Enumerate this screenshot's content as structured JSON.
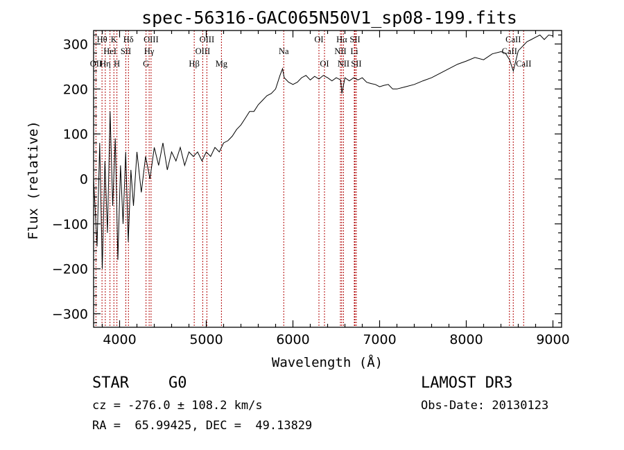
{
  "chart_data": {
    "type": "line",
    "title": "spec-56316-GAC065N50V1_sp08-199.fits",
    "xlabel": "Wavelength (Å)",
    "ylabel": "Flux (relative)",
    "xlim": [
      3700,
      9100
    ],
    "ylim": [
      -330,
      330
    ],
    "xticks": [
      4000,
      5000,
      6000,
      7000,
      8000,
      9000
    ],
    "xtick_labels": [
      "4000",
      "5000",
      "6000",
      "7000",
      "8000",
      "9000"
    ],
    "yticks": [
      -300,
      -200,
      -100,
      0,
      100,
      200,
      300
    ],
    "ytick_labels": [
      "-300",
      "-200",
      "-100",
      "0",
      "100",
      "200",
      "300"
    ],
    "series": [
      {
        "name": "spectrum",
        "x": [
          3700,
          3740,
          3770,
          3800,
          3830,
          3860,
          3890,
          3920,
          3950,
          3980,
          4010,
          4040,
          4070,
          4100,
          4130,
          4160,
          4200,
          4250,
          4300,
          4350,
          4400,
          4450,
          4500,
          4550,
          4600,
          4650,
          4700,
          4750,
          4800,
          4850,
          4900,
          4950,
          5000,
          5050,
          5100,
          5150,
          5200,
          5250,
          5300,
          5350,
          5400,
          5450,
          5500,
          5550,
          5600,
          5650,
          5700,
          5750,
          5800,
          5850,
          5880,
          5900,
          5950,
          6000,
          6050,
          6100,
          6150,
          6200,
          6250,
          6300,
          6350,
          6400,
          6450,
          6500,
          6550,
          6565,
          6600,
          6650,
          6700,
          6750,
          6800,
          6850,
          6900,
          6950,
          7000,
          7050,
          7100,
          7150,
          7200,
          7300,
          7400,
          7500,
          7600,
          7700,
          7800,
          7900,
          8000,
          8100,
          8200,
          8300,
          8400,
          8450,
          8500,
          8542,
          8600,
          8650,
          8700,
          8750,
          8800,
          8850,
          8900,
          8950,
          9000
        ],
        "y": [
          0,
          -150,
          80,
          -200,
          40,
          -120,
          150,
          -60,
          90,
          -180,
          30,
          -100,
          60,
          -140,
          20,
          -60,
          60,
          -30,
          50,
          0,
          70,
          30,
          80,
          20,
          60,
          40,
          70,
          30,
          60,
          50,
          60,
          40,
          60,
          50,
          70,
          60,
          80,
          85,
          95,
          110,
          120,
          135,
          150,
          150,
          165,
          175,
          185,
          190,
          200,
          230,
          245,
          225,
          215,
          210,
          215,
          225,
          230,
          220,
          228,
          222,
          230,
          225,
          218,
          225,
          220,
          190,
          225,
          218,
          225,
          220,
          225,
          215,
          212,
          210,
          205,
          208,
          210,
          200,
          200,
          205,
          210,
          218,
          225,
          235,
          245,
          255,
          262,
          270,
          265,
          278,
          283,
          280,
          265,
          240,
          285,
          295,
          305,
          310,
          315,
          320,
          310,
          320,
          318
        ]
      }
    ],
    "line_markers": [
      {
        "label": "OII",
        "x": 3727,
        "row": 3
      },
      {
        "label": "Hθ",
        "x": 3797,
        "row": 1
      },
      {
        "label": "Hη",
        "x": 3835,
        "row": 3
      },
      {
        "label": "HeI",
        "x": 3889,
        "row": 2
      },
      {
        "label": "K",
        "x": 3934,
        "row": 1
      },
      {
        "label": "H",
        "x": 3969,
        "row": 3
      },
      {
        "label": "SII",
        "x": 4072,
        "row": 2
      },
      {
        "label": "Hδ",
        "x": 4102,
        "row": 1
      },
      {
        "label": "G",
        "x": 4305,
        "row": 3
      },
      {
        "label": "Hγ",
        "x": 4341,
        "row": 2
      },
      {
        "label": "OIII",
        "x": 4363,
        "row": 1
      },
      {
        "label": "Hβ",
        "x": 4861,
        "row": 3
      },
      {
        "label": "OIII",
        "x": 4959,
        "row": 2
      },
      {
        "label": "OIII",
        "x": 5007,
        "row": 1
      },
      {
        "label": "Mg",
        "x": 5175,
        "row": 3
      },
      {
        "label": "Na",
        "x": 5894,
        "row": 2
      },
      {
        "label": "OI",
        "x": 6300,
        "row": 1
      },
      {
        "label": "OI",
        "x": 6364,
        "row": 3
      },
      {
        "label": "NII",
        "x": 6548,
        "row": 2
      },
      {
        "label": "Hα",
        "x": 6563,
        "row": 1
      },
      {
        "label": "NII",
        "x": 6583,
        "row": 3
      },
      {
        "label": "Li",
        "x": 6708,
        "row": 2
      },
      {
        "label": "SII",
        "x": 6716,
        "row": 1
      },
      {
        "label": "SII",
        "x": 6731,
        "row": 3
      },
      {
        "label": "CaII",
        "x": 8498,
        "row": 2
      },
      {
        "label": "CaII",
        "x": 8542,
        "row": 1
      },
      {
        "label": "CaII",
        "x": 8662,
        "row": 3
      }
    ]
  },
  "info": {
    "object_class": "STAR",
    "subclass": "G0",
    "survey": "LAMOST DR3",
    "redshift": "cz = -276.0 ± 108.2 km/s",
    "obs_date": "Obs-Date: 20130123",
    "coords": "RA =  65.99425, DEC =  49.13829"
  }
}
